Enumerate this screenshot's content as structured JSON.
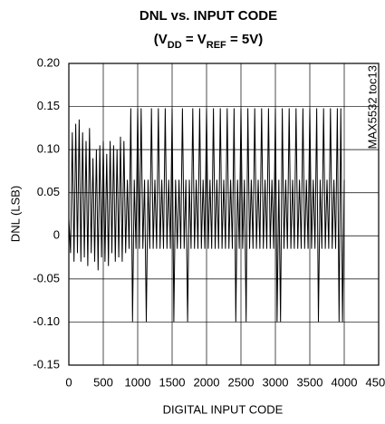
{
  "chart_data": {
    "type": "line",
    "title": "DNL vs. INPUT CODE",
    "subtitle": [
      "(V",
      "DD",
      " = V",
      "REF",
      " = 5V)"
    ],
    "annotation": "MAX5532 toc13",
    "xlabel": "DIGITAL INPUT CODE",
    "ylabel": "DNL (LSB)",
    "color": "#000000",
    "grid": true,
    "xlim": [
      0,
      4500
    ],
    "ylim": [
      -0.15,
      0.2
    ],
    "xticks": [
      0,
      500,
      1000,
      1500,
      2000,
      2500,
      3000,
      3500,
      4000,
      4500
    ],
    "yticks": [
      {
        "value": 0.2,
        "label": "0.20"
      },
      0.15,
      {
        "value": 0.1,
        "label": "0.10"
      },
      0.05,
      0,
      -0.05,
      {
        "value": -0.1,
        "label": "-0.10"
      },
      -0.15
    ],
    "x": [
      0,
      25,
      50,
      75,
      100,
      125,
      150,
      175,
      200,
      225,
      250,
      275,
      300,
      325,
      350,
      375,
      400,
      425,
      450,
      475,
      500,
      525,
      550,
      575,
      600,
      625,
      650,
      675,
      700,
      725,
      750,
      775,
      800,
      825,
      850,
      875,
      900,
      925,
      950,
      975,
      1000,
      1025,
      1050,
      1075,
      1100,
      1125,
      1150,
      1175,
      1200,
      1225,
      1250,
      1275,
      1300,
      1325,
      1350,
      1375,
      1400,
      1425,
      1450,
      1475,
      1500,
      1525,
      1550,
      1575,
      1600,
      1625,
      1650,
      1675,
      1700,
      1725,
      1750,
      1775,
      1800,
      1825,
      1850,
      1875,
      1900,
      1925,
      1950,
      1975,
      2000,
      2025,
      2050,
      2075,
      2100,
      2125,
      2150,
      2175,
      2200,
      2225,
      2250,
      2275,
      2300,
      2325,
      2350,
      2375,
      2400,
      2425,
      2450,
      2475,
      2500,
      2525,
      2550,
      2575,
      2600,
      2625,
      2650,
      2675,
      2700,
      2725,
      2750,
      2775,
      2800,
      2825,
      2850,
      2875,
      2900,
      2925,
      2950,
      2975,
      3000,
      3025,
      3050,
      3075,
      3100,
      3125,
      3150,
      3175,
      3200,
      3225,
      3250,
      3275,
      3300,
      3325,
      3350,
      3375,
      3400,
      3425,
      3450,
      3475,
      3500,
      3525,
      3550,
      3575,
      3600,
      3625,
      3650,
      3675,
      3700,
      3725,
      3750,
      3775,
      3800,
      3825,
      3850,
      3875,
      3900,
      3925,
      3950,
      3975,
      4000
    ],
    "values": [
      0.02,
      -0.02,
      0.12,
      -0.03,
      0.13,
      -0.02,
      0.135,
      -0.03,
      0.12,
      -0.025,
      0.11,
      -0.035,
      0.125,
      -0.02,
      0.09,
      -0.03,
      0.1,
      -0.04,
      0.105,
      -0.025,
      0.11,
      -0.03,
      0.095,
      -0.035,
      0.11,
      -0.02,
      0.105,
      -0.03,
      0.1,
      -0.025,
      0.115,
      -0.03,
      0.11,
      -0.02,
      0.065,
      -0.015,
      0.148,
      -0.1,
      0.065,
      -0.015,
      0.148,
      -0.015,
      0.148,
      -0.015,
      0.065,
      -0.1,
      0.065,
      -0.015,
      0.148,
      -0.015,
      0.065,
      -0.015,
      0.148,
      -0.015,
      0.065,
      -0.015,
      0.148,
      -0.015,
      0.065,
      -0.015,
      0.148,
      -0.1,
      0.065,
      -0.015,
      0.065,
      -0.015,
      0.148,
      -0.015,
      0.065,
      -0.1,
      0.065,
      -0.015,
      0.148,
      -0.015,
      0.065,
      -0.015,
      0.148,
      -0.015,
      0.065,
      -0.015,
      0.148,
      -0.015,
      0.065,
      -0.015,
      0.148,
      -0.015,
      0.065,
      -0.015,
      0.148,
      -0.015,
      0.065,
      -0.015,
      0.148,
      -0.015,
      0.065,
      -0.015,
      0.148,
      -0.1,
      0.065,
      -0.015,
      0.148,
      -0.015,
      0.065,
      -0.1,
      0.148,
      -0.015,
      0.065,
      -0.015,
      0.148,
      -0.015,
      0.065,
      -0.015,
      0.148,
      -0.015,
      0.065,
      -0.015,
      0.148,
      -0.015,
      0.065,
      -0.015,
      0.148,
      -0.1,
      0.065,
      -0.1,
      0.148,
      -0.015,
      0.065,
      -0.015,
      0.148,
      -0.015,
      0.065,
      -0.015,
      0.148,
      -0.015,
      0.065,
      -0.015,
      0.148,
      -0.015,
      0.065,
      -0.015,
      0.148,
      -0.015,
      0.065,
      -0.015,
      0.148,
      -0.1,
      0.065,
      -0.015,
      0.148,
      -0.015,
      0.065,
      -0.015,
      0.148,
      -0.015,
      0.065,
      -0.015,
      0.148,
      -0.1,
      0.148,
      -0.1,
      0.065
    ]
  }
}
